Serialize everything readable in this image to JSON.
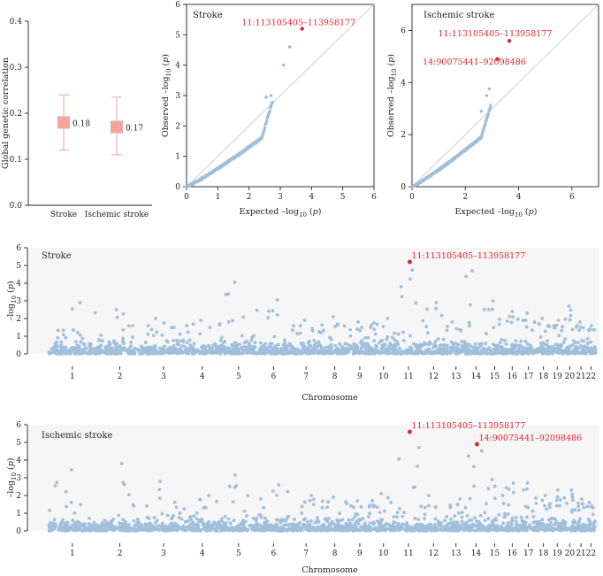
{
  "colors": {
    "point": "#9fbfdc",
    "highlight": "#e0242c",
    "box": "#f2a59f",
    "identity": "#cfcfcf",
    "panel_bg": "#f6f6f6"
  },
  "correlation": {
    "ylabel": "Global genetic correlation",
    "yticks": [
      "0.0",
      "0.1",
      "0.2",
      "0.3",
      "0.4"
    ],
    "categories": [
      "Stroke",
      "Ischemic stroke"
    ],
    "values": [
      "0.18",
      "0.17"
    ]
  },
  "qq_stroke": {
    "title": "Stroke",
    "xlabel": "Expected –log",
    "ylabel": "Observed –log",
    "xticks": [
      "0",
      "1",
      "2",
      "3",
      "4",
      "5",
      "6"
    ],
    "yticks": [
      "0",
      "1",
      "2",
      "3",
      "4",
      "5",
      "6"
    ],
    "labels": [
      "11:113105405–113958177"
    ]
  },
  "qq_ischemic": {
    "title": "Ischemic stroke",
    "xlabel": "Expected –log",
    "ylabel": "Observed –log",
    "xticks": [
      "0",
      "2",
      "4",
      "6"
    ],
    "yticks": [
      "0",
      "2",
      "4",
      "6"
    ],
    "labels": [
      "11:113105405–113958177",
      "14:90075441–92098486"
    ]
  },
  "manhattan_stroke": {
    "title": "Stroke",
    "ylabel": "–log",
    "xlabel": "Chromosome",
    "yticks": [
      "0",
      "1",
      "2",
      "3",
      "4",
      "5",
      "6"
    ],
    "chromosomes": [
      "1",
      "2",
      "3",
      "4",
      "5",
      "6",
      "7",
      "8",
      "9",
      "10",
      "11",
      "12",
      "13",
      "14",
      "15",
      "16",
      "17",
      "18",
      "19",
      "20",
      "21",
      "22"
    ],
    "labels": [
      "11:113105405–113958177"
    ]
  },
  "manhattan_ischemic": {
    "title": "Ischemic stroke",
    "ylabel": "–log",
    "xlabel": "Chromosome",
    "yticks": [
      "0",
      "1",
      "2",
      "3",
      "4",
      "5",
      "6"
    ],
    "chromosomes": [
      "1",
      "2",
      "3",
      "4",
      "5",
      "6",
      "7",
      "8",
      "9",
      "10",
      "11",
      "12",
      "13",
      "14",
      "15",
      "16",
      "17",
      "18",
      "19",
      "20",
      "21",
      "22"
    ],
    "labels": [
      "11:113105405–113958177",
      "14:90075441–92098486"
    ]
  },
  "chart_data": [
    {
      "type": "scatter",
      "ylabel": "Global genetic correlation",
      "ylim": [
        0,
        0.4
      ],
      "categories": [
        "Stroke",
        "Ischemic stroke"
      ],
      "series": [
        {
          "values": [
            0.18,
            0.17
          ],
          "lower": [
            0.12,
            0.11
          ],
          "upper": [
            0.24,
            0.235
          ]
        }
      ]
    },
    {
      "type": "scatter",
      "title": "Stroke",
      "xlim": [
        0,
        6
      ],
      "ylim": [
        0,
        6
      ],
      "highlights": [
        {
          "label": "11:113105405–113958177",
          "x": 3.7,
          "y": 5.2
        }
      ],
      "tail_points": [
        {
          "x": 3.1,
          "y": 4.0
        },
        {
          "x": 3.3,
          "y": 4.6
        },
        {
          "x": 2.7,
          "y": 3.0
        },
        {
          "x": 2.55,
          "y": 2.95
        }
      ],
      "bulk_end": {
        "x": 2.4,
        "y": 1.6
      }
    },
    {
      "type": "scatter",
      "title": "Ischemic stroke",
      "xlim": [
        0,
        7
      ],
      "ylim": [
        0,
        7
      ],
      "highlights": [
        {
          "label": "11:113105405–113958177",
          "x": 3.65,
          "y": 5.6
        },
        {
          "label": "14:90075441–92098486",
          "x": 3.2,
          "y": 4.9
        }
      ],
      "tail_points": [
        {
          "x": 2.9,
          "y": 3.75
        },
        {
          "x": 2.8,
          "y": 3.5
        },
        {
          "x": 2.6,
          "y": 2.9
        }
      ],
      "bulk_end": {
        "x": 2.6,
        "y": 1.9
      }
    },
    {
      "type": "scatter",
      "title": "Stroke",
      "xlabel": "Chromosome",
      "ylim": [
        0,
        6
      ],
      "categories": [
        "1",
        "2",
        "3",
        "4",
        "5",
        "6",
        "7",
        "8",
        "9",
        "10",
        "11",
        "12",
        "13",
        "14",
        "15",
        "16",
        "17",
        "18",
        "19",
        "20",
        "21",
        "22"
      ],
      "peaks": [
        2.9,
        2.5,
        2.0,
        1.9,
        4.05,
        3.05,
        1.9,
        2.1,
        1.8,
        2.0,
        5.2,
        2.9,
        1.8,
        4.7,
        3.0,
        2.4,
        2.3,
        2.0,
        1.9,
        2.7,
        1.8,
        1.6
      ],
      "highlights": [
        {
          "label": "11:113105405–113958177",
          "chromosome": "11",
          "y": 5.2
        }
      ]
    },
    {
      "type": "scatter",
      "title": "Ischemic stroke",
      "xlabel": "Chromosome",
      "ylim": [
        0,
        6
      ],
      "categories": [
        "1",
        "2",
        "3",
        "4",
        "5",
        "6",
        "7",
        "8",
        "9",
        "10",
        "11",
        "12",
        "13",
        "14",
        "15",
        "16",
        "17",
        "18",
        "19",
        "20",
        "21",
        "22"
      ],
      "peaks": [
        3.45,
        3.8,
        2.8,
        2.0,
        3.15,
        2.6,
        2.0,
        1.9,
        1.7,
        2.1,
        5.6,
        2.0,
        1.8,
        4.9,
        2.9,
        2.7,
        2.7,
        2.0,
        2.3,
        2.3,
        1.8,
        1.6
      ],
      "highlights": [
        {
          "label": "11:113105405–113958177",
          "chromosome": "11",
          "y": 5.6
        },
        {
          "label": "14:90075441–92098486",
          "chromosome": "14",
          "y": 4.9
        }
      ]
    }
  ]
}
